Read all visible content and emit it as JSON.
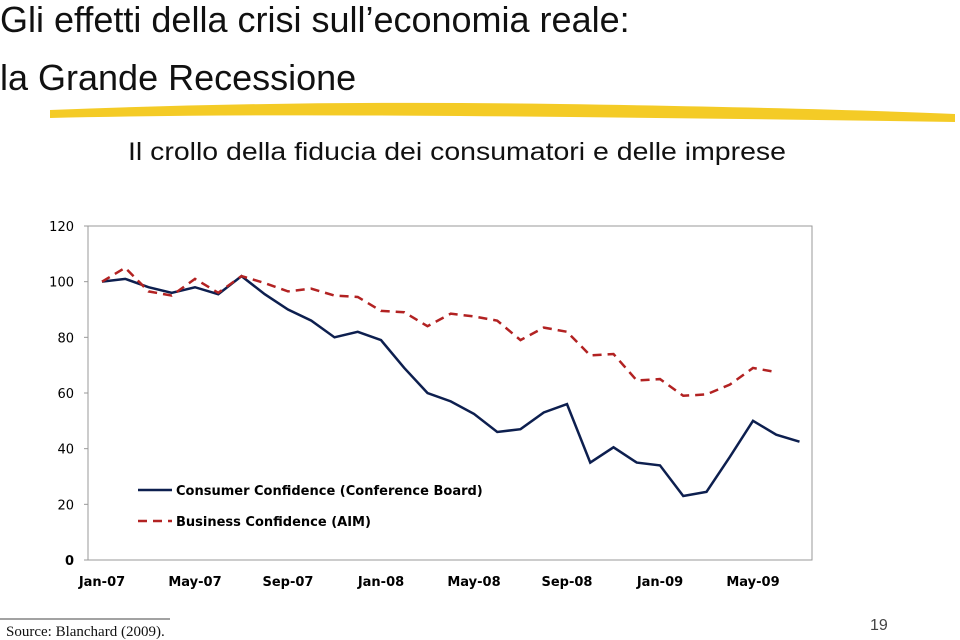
{
  "slide": {
    "title_lines": [
      "Gli effetti della crisi sull’economia reale:",
      "la Grande Recessione"
    ],
    "source": "Source: Blanchard (2009).",
    "page_number": "19"
  },
  "chart_data": {
    "type": "line",
    "title": "Il crollo della fiducia dei consumatori e delle imprese",
    "categories": [
      "Jan-07",
      null,
      null,
      null,
      "May-07",
      null,
      null,
      null,
      "Sep-07",
      null,
      null,
      null,
      "Jan-08",
      null,
      null,
      null,
      "May-08",
      null,
      null,
      null,
      "Sep-08",
      null,
      null,
      null,
      "Jan-09",
      null,
      null,
      null,
      "May-09",
      null,
      null
    ],
    "series": [
      {
        "name": "Consumer Confidence (Conference Board)",
        "color": "#0d1f4f",
        "dash": false,
        "values": [
          100,
          101,
          98,
          96,
          98,
          95.5,
          102,
          95.5,
          90,
          86,
          80,
          82,
          79,
          69,
          60,
          57,
          52.5,
          46,
          47,
          53,
          56,
          35,
          40.5,
          35,
          34,
          23,
          24.5,
          37,
          50,
          45,
          42.5
        ]
      },
      {
        "name": "Business Confidence (AIM)",
        "color": "#b22222",
        "dash": true,
        "values": [
          100,
          105,
          96.5,
          95,
          101,
          96,
          102,
          99.5,
          96.5,
          97.5,
          95,
          94.5,
          89.5,
          89,
          84,
          88.5,
          87.5,
          86,
          79,
          83.5,
          82,
          73.5,
          74,
          64.5,
          65,
          59,
          59.5,
          63,
          69,
          67.5,
          null
        ]
      }
    ],
    "ylim": [
      0,
      120
    ],
    "yticks": [
      0,
      20,
      40,
      60,
      80,
      100,
      120
    ]
  }
}
